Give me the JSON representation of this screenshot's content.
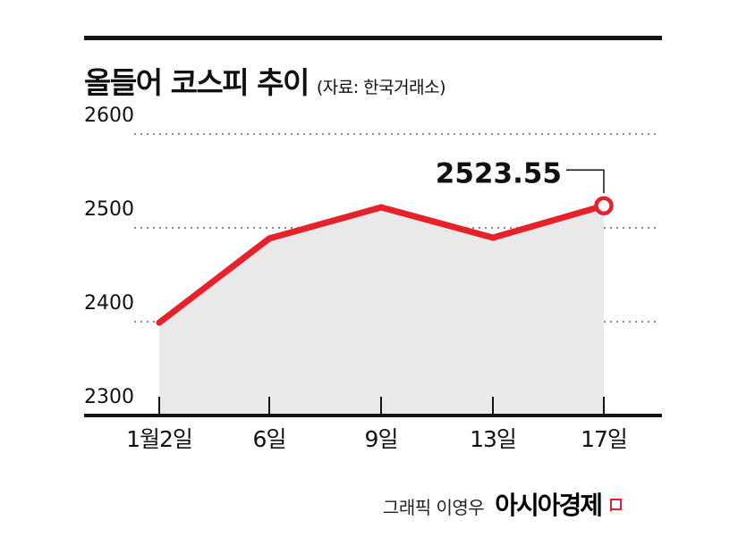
{
  "header": {
    "title": "올들어 코스피 추이",
    "source": "(자료: 한국거래소)"
  },
  "chart_data": {
    "type": "line",
    "title": "올들어 코스피 추이",
    "source": "(자료: 한국거래소)",
    "x": [
      "1월2일",
      "6일",
      "9일",
      "13일",
      "17일"
    ],
    "values": [
      2398.94,
      2488.64,
      2521.9,
      2489.56,
      2523.55
    ],
    "ylim": [
      2300,
      2600
    ],
    "yticks": [
      2600,
      2500,
      2400,
      2300
    ],
    "grid": "horizontal-dotted",
    "annotation": {
      "label": "2523.55",
      "index": 4
    },
    "colors": {
      "line": "#e62129",
      "area": "#e9e9e9",
      "grid": "#8a8a8a",
      "axis": "#141414",
      "text": "#111111",
      "marker_fill": "#ffffff"
    }
  },
  "footer": {
    "credit": "그래픽 이영우",
    "brand": "아시아경제"
  }
}
